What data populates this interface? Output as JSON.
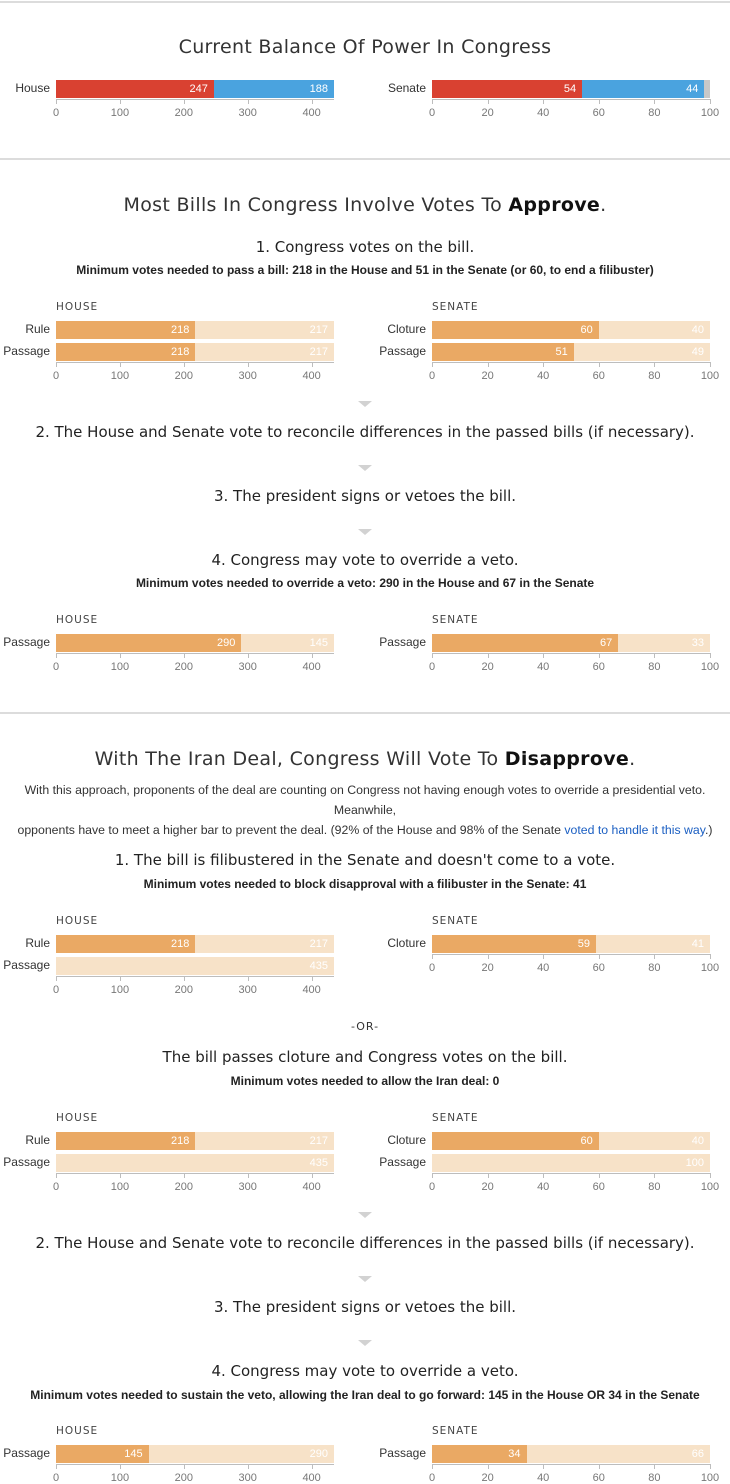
{
  "colors": {
    "republican": "#d94131",
    "democrat": "#4aa3df",
    "independent": "#c8c8c8",
    "yes": "#eaa964",
    "remaining": "#f7e2c8"
  },
  "sections": {
    "balance": {
      "title": "Current Balance Of Power In Congress"
    },
    "approve": {
      "title_prefix": "Most Bills In Congress Involve Votes To ",
      "title_bold": "Approve",
      "title_suffix": ".",
      "step1": "1. Congress votes on the bill.",
      "step1_sub": "Minimum votes needed to pass a bill: 218 in the House and 51 in the Senate (or 60, to end a filibuster)",
      "step2": "2. The House and Senate vote to reconcile differences in the passed bills (if necessary).",
      "step3": "3. The president signs or vetoes the bill.",
      "step4": "4. Congress may vote to override a veto.",
      "step4_sub": "Minimum votes needed to override a veto: 290 in the House and 67 in the Senate"
    },
    "disapprove": {
      "title_prefix": "With The Iran Deal, Congress Will Vote To ",
      "title_bold": "Disapprove",
      "title_suffix": ".",
      "para_line1": "With this approach, proponents of the deal are counting on Congress not having enough votes to override a presidential veto. Meanwhile,",
      "para_line2_pre": "opponents have to meet a higher bar to prevent the deal. (92% of the House and 98% of the Senate ",
      "para_link": "voted to handle it this way",
      "para_line2_post": ".)",
      "step1": "1. The bill is filibustered in the Senate and doesn't come to a vote.",
      "step1_sub": "Minimum votes needed to block disapproval with a filibuster in the Senate: 41",
      "or": "-OR-",
      "alt": "The bill passes cloture and Congress votes on the bill.",
      "alt_sub": "Minimum votes needed to allow the Iran deal: 0",
      "step2": "2. The House and Senate vote to reconcile differences in the passed bills (if necessary).",
      "step3": "3. The president signs or vetoes the bill.",
      "step4": "4. Congress may vote to override a veto.",
      "step4_sub": "Minimum votes needed to sustain the veto, allowing the Iran deal to go forward: 145 in the House OR 34 in the Senate"
    }
  },
  "chart_data": [
    {
      "type": "bar",
      "id": "balance-house",
      "chamber": "",
      "axis_max": 435,
      "ticks": [
        0,
        100,
        200,
        300,
        400
      ],
      "rows": [
        {
          "label": "House",
          "segments": [
            {
              "value": 247,
              "color": "republican",
              "show": true
            },
            {
              "value": 188,
              "color": "democrat",
              "show": true
            }
          ]
        }
      ]
    },
    {
      "type": "bar",
      "id": "balance-senate",
      "chamber": "",
      "axis_max": 100,
      "ticks": [
        0,
        20,
        40,
        60,
        80,
        100
      ],
      "rows": [
        {
          "label": "Senate",
          "segments": [
            {
              "value": 54,
              "color": "republican",
              "show": true
            },
            {
              "value": 44,
              "color": "democrat",
              "show": true
            },
            {
              "value": 2,
              "color": "independent",
              "show": false
            }
          ]
        }
      ]
    },
    {
      "type": "bar",
      "id": "approve1-house",
      "chamber": "HOUSE",
      "axis_max": 435,
      "ticks": [
        0,
        100,
        200,
        300,
        400
      ],
      "rows": [
        {
          "label": "Rule",
          "segments": [
            {
              "value": 218,
              "color": "yes",
              "show": true
            },
            {
              "value": 217,
              "color": "remaining",
              "show": true
            }
          ]
        },
        {
          "label": "Passage",
          "segments": [
            {
              "value": 218,
              "color": "yes",
              "show": true
            },
            {
              "value": 217,
              "color": "remaining",
              "show": true
            }
          ]
        }
      ]
    },
    {
      "type": "bar",
      "id": "approve1-senate",
      "chamber": "SENATE",
      "axis_max": 100,
      "ticks": [
        0,
        20,
        40,
        60,
        80,
        100
      ],
      "rows": [
        {
          "label": "Cloture",
          "segments": [
            {
              "value": 60,
              "color": "yes",
              "show": true
            },
            {
              "value": 40,
              "color": "remaining",
              "show": true
            }
          ]
        },
        {
          "label": "Passage",
          "segments": [
            {
              "value": 51,
              "color": "yes",
              "show": true
            },
            {
              "value": 49,
              "color": "remaining",
              "show": true
            }
          ]
        }
      ]
    },
    {
      "type": "bar",
      "id": "approve4-house",
      "chamber": "HOUSE",
      "axis_max": 435,
      "ticks": [
        0,
        100,
        200,
        300,
        400
      ],
      "rows": [
        {
          "label": "Passage",
          "segments": [
            {
              "value": 290,
              "color": "yes",
              "show": true
            },
            {
              "value": 145,
              "color": "remaining",
              "show": true
            }
          ]
        }
      ]
    },
    {
      "type": "bar",
      "id": "approve4-senate",
      "chamber": "SENATE",
      "axis_max": 100,
      "ticks": [
        0,
        20,
        40,
        60,
        80,
        100
      ],
      "rows": [
        {
          "label": "Passage",
          "segments": [
            {
              "value": 67,
              "color": "yes",
              "show": true
            },
            {
              "value": 33,
              "color": "remaining",
              "show": true
            }
          ]
        }
      ]
    },
    {
      "type": "bar",
      "id": "dis1-house",
      "chamber": "HOUSE",
      "axis_max": 435,
      "ticks": [
        0,
        100,
        200,
        300,
        400
      ],
      "rows": [
        {
          "label": "Rule",
          "segments": [
            {
              "value": 218,
              "color": "yes",
              "show": true
            },
            {
              "value": 217,
              "color": "remaining",
              "show": true
            }
          ]
        },
        {
          "label": "Passage",
          "segments": [
            {
              "value": 435,
              "color": "remaining",
              "show": true
            }
          ]
        }
      ]
    },
    {
      "type": "bar",
      "id": "dis1-senate",
      "chamber": "SENATE",
      "axis_max": 100,
      "ticks": [
        0,
        20,
        40,
        60,
        80,
        100
      ],
      "rows": [
        {
          "label": "Cloture",
          "segments": [
            {
              "value": 59,
              "color": "yes",
              "show": true
            },
            {
              "value": 41,
              "color": "remaining",
              "show": true
            }
          ]
        }
      ]
    },
    {
      "type": "bar",
      "id": "dis-alt-house",
      "chamber": "HOUSE",
      "axis_max": 435,
      "ticks": [
        0,
        100,
        200,
        300,
        400
      ],
      "rows": [
        {
          "label": "Rule",
          "segments": [
            {
              "value": 218,
              "color": "yes",
              "show": true
            },
            {
              "value": 217,
              "color": "remaining",
              "show": true
            }
          ]
        },
        {
          "label": "Passage",
          "segments": [
            {
              "value": 435,
              "color": "remaining",
              "show": true
            }
          ]
        }
      ]
    },
    {
      "type": "bar",
      "id": "dis-alt-senate",
      "chamber": "SENATE",
      "axis_max": 100,
      "ticks": [
        0,
        20,
        40,
        60,
        80,
        100
      ],
      "rows": [
        {
          "label": "Cloture",
          "segments": [
            {
              "value": 60,
              "color": "yes",
              "show": true
            },
            {
              "value": 40,
              "color": "remaining",
              "show": true
            }
          ]
        },
        {
          "label": "Passage",
          "segments": [
            {
              "value": 100,
              "color": "remaining",
              "show": true
            }
          ]
        }
      ]
    },
    {
      "type": "bar",
      "id": "dis4-house",
      "chamber": "HOUSE",
      "axis_max": 435,
      "ticks": [
        0,
        100,
        200,
        300,
        400
      ],
      "rows": [
        {
          "label": "Passage",
          "segments": [
            {
              "value": 145,
              "color": "yes",
              "show": true
            },
            {
              "value": 290,
              "color": "remaining",
              "show": true
            }
          ]
        }
      ]
    },
    {
      "type": "bar",
      "id": "dis4-senate",
      "chamber": "SENATE",
      "axis_max": 100,
      "ticks": [
        0,
        20,
        40,
        60,
        80,
        100
      ],
      "rows": [
        {
          "label": "Passage",
          "segments": [
            {
              "value": 34,
              "color": "yes",
              "show": true
            },
            {
              "value": 66,
              "color": "remaining",
              "show": true
            }
          ]
        }
      ]
    }
  ]
}
